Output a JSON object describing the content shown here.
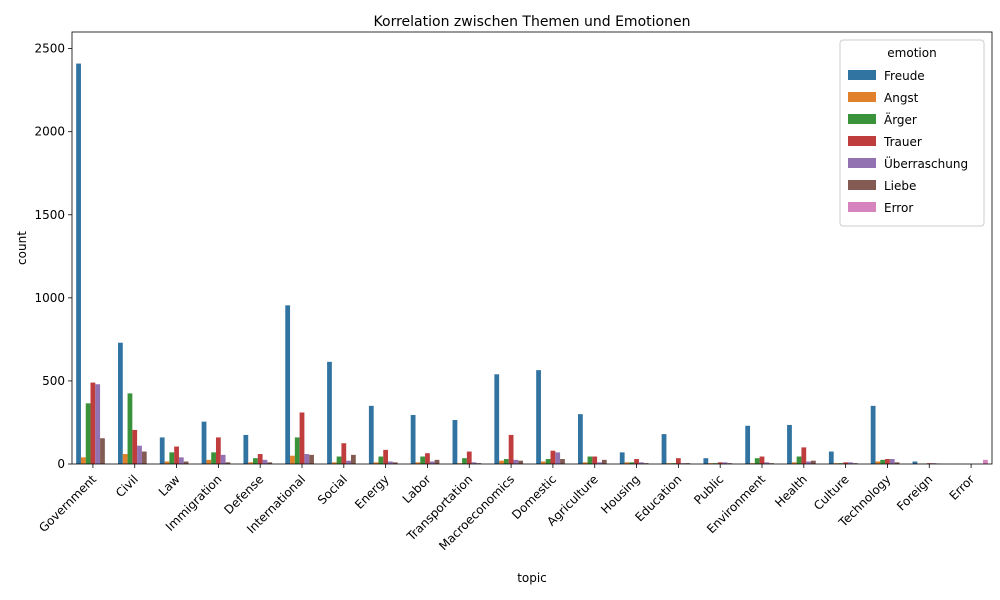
{
  "chart_data": {
    "type": "bar",
    "title": "Korrelation zwischen Themen und Emotionen",
    "xlabel": "topic",
    "ylabel": "count",
    "ylim": [
      0,
      2600
    ],
    "yticks": [
      0,
      500,
      1000,
      1500,
      2000,
      2500
    ],
    "legend": {
      "title": "emotion",
      "placement": "top-right"
    },
    "categories": [
      "Government",
      "Civil",
      "Law",
      "Immigration",
      "Defense",
      "International",
      "Social",
      "Energy",
      "Labor",
      "Transportation",
      "Macroeconomics",
      "Domestic",
      "Agriculture",
      "Housing",
      "Education",
      "Public",
      "Environment",
      "Health",
      "Culture",
      "Technology",
      "Foreign",
      "Error"
    ],
    "series": [
      {
        "name": "Freude",
        "color": "#3274a1",
        "values": [
          2410,
          730,
          160,
          255,
          175,
          955,
          615,
          350,
          295,
          265,
          540,
          565,
          300,
          70,
          180,
          35,
          230,
          235,
          75,
          350,
          15,
          0
        ]
      },
      {
        "name": "Angst",
        "color": "#e1812c",
        "values": [
          40,
          60,
          15,
          25,
          10,
          50,
          10,
          10,
          10,
          5,
          20,
          15,
          10,
          10,
          5,
          5,
          5,
          10,
          5,
          15,
          2,
          0
        ]
      },
      {
        "name": "Ärger",
        "color": "#3a923a",
        "values": [
          365,
          425,
          70,
          70,
          35,
          160,
          45,
          45,
          45,
          35,
          30,
          30,
          45,
          10,
          5,
          5,
          35,
          45,
          5,
          25,
          2,
          0
        ]
      },
      {
        "name": "Trauer",
        "color": "#c03d3e",
        "values": [
          490,
          205,
          105,
          160,
          60,
          310,
          125,
          85,
          65,
          75,
          175,
          80,
          45,
          30,
          35,
          10,
          45,
          100,
          10,
          30,
          5,
          0
        ]
      },
      {
        "name": "Überraschung",
        "color": "#9372b2",
        "values": [
          480,
          110,
          40,
          55,
          25,
          60,
          20,
          15,
          15,
          10,
          25,
          70,
          10,
          10,
          5,
          10,
          10,
          15,
          10,
          30,
          5,
          0
        ]
      },
      {
        "name": "Liebe",
        "color": "#845b53",
        "values": [
          155,
          75,
          15,
          10,
          10,
          55,
          55,
          10,
          25,
          5,
          20,
          30,
          25,
          5,
          5,
          5,
          5,
          20,
          5,
          10,
          2,
          0
        ]
      },
      {
        "name": "Error",
        "color": "#d684bd",
        "values": [
          0,
          0,
          0,
          0,
          0,
          0,
          0,
          0,
          0,
          0,
          0,
          0,
          0,
          0,
          0,
          0,
          0,
          0,
          0,
          0,
          0,
          25
        ]
      }
    ]
  }
}
